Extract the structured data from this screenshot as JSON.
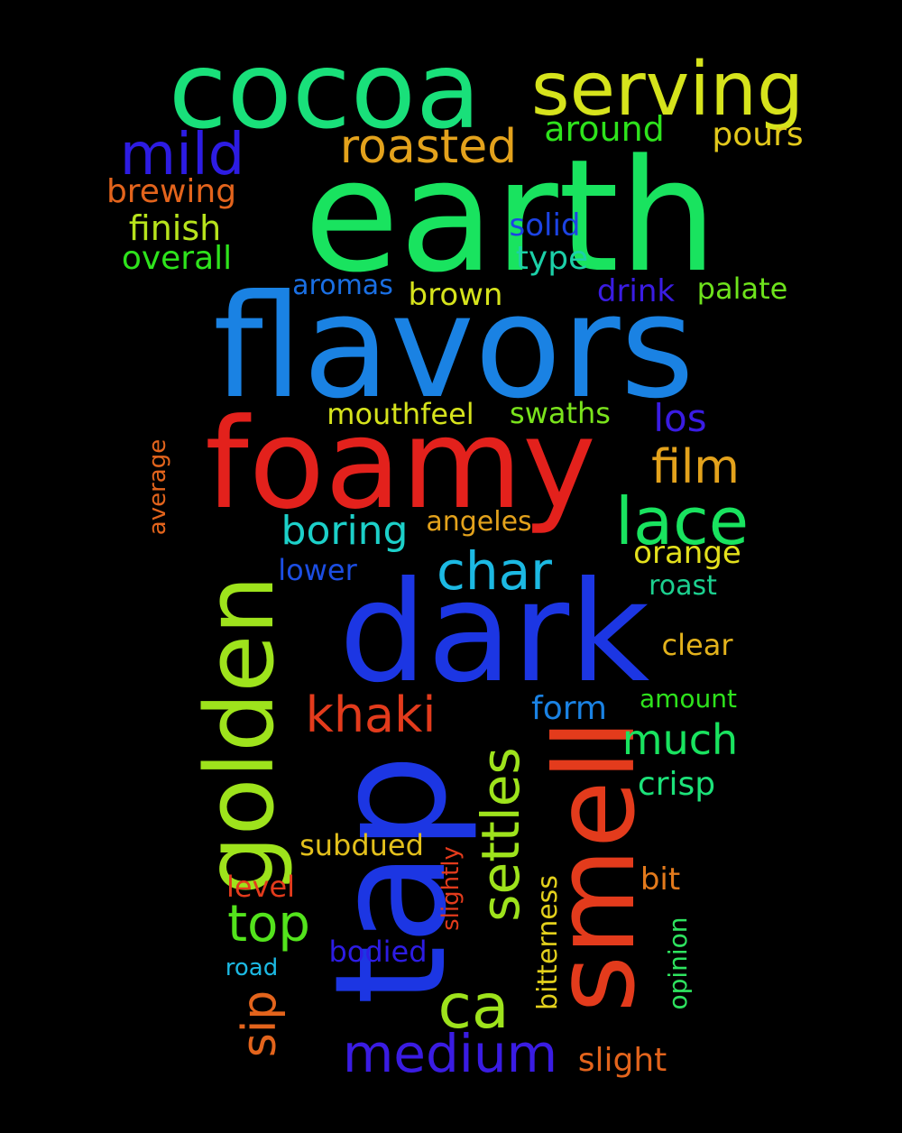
{
  "background": "#000000",
  "words": [
    {
      "text": "earth",
      "color": "#19e35f"
    },
    {
      "text": "flavors",
      "color": "#1a82e3"
    },
    {
      "text": "cocoa",
      "color": "#19e07a"
    },
    {
      "text": "foamy",
      "color": "#e3211c"
    },
    {
      "text": "dark",
      "color": "#1c36e3"
    },
    {
      "text": "tap",
      "color": "#1c36e3"
    },
    {
      "text": "smell",
      "color": "#e33b1c"
    },
    {
      "text": "golden",
      "color": "#9ee31c"
    },
    {
      "text": "serving",
      "color": "#d6e31c"
    },
    {
      "text": "mild",
      "color": "#2d1ce3"
    },
    {
      "text": "roasted",
      "color": "#e3a21c"
    },
    {
      "text": "around",
      "color": "#2ee31c"
    },
    {
      "text": "pours",
      "color": "#e3c91c"
    },
    {
      "text": "brewing",
      "color": "#e3641c"
    },
    {
      "text": "finish",
      "color": "#b7e31c"
    },
    {
      "text": "overall",
      "color": "#2ee31c"
    },
    {
      "text": "solid",
      "color": "#1c43e3"
    },
    {
      "text": "type",
      "color": "#1cd0a8"
    },
    {
      "text": "aromas",
      "color": "#1a6fe3"
    },
    {
      "text": "brown",
      "color": "#d6e31c"
    },
    {
      "text": "drink",
      "color": "#3a1ce3"
    },
    {
      "text": "palate",
      "color": "#6ee31c"
    },
    {
      "text": "mouthfeel",
      "color": "#d6e31c"
    },
    {
      "text": "swaths",
      "color": "#7ae31c"
    },
    {
      "text": "los",
      "color": "#3a1ce3"
    },
    {
      "text": "film",
      "color": "#e3a21c"
    },
    {
      "text": "lace",
      "color": "#19e35f"
    },
    {
      "text": "average",
      "color": "#e3641c"
    },
    {
      "text": "boring",
      "color": "#1cd0c9"
    },
    {
      "text": "angeles",
      "color": "#e3a21c"
    },
    {
      "text": "char",
      "color": "#1cb9e3"
    },
    {
      "text": "orange",
      "color": "#e3e01c"
    },
    {
      "text": "lower",
      "color": "#1c4ee3"
    },
    {
      "text": "roast",
      "color": "#1cd08f"
    },
    {
      "text": "clear",
      "color": "#e3b21c"
    },
    {
      "text": "khaki",
      "color": "#e33b1c"
    },
    {
      "text": "form",
      "color": "#1a82e3"
    },
    {
      "text": "amount",
      "color": "#2ee31c"
    },
    {
      "text": "settles",
      "color": "#9ee31c"
    },
    {
      "text": "much",
      "color": "#19e35f"
    },
    {
      "text": "crisp",
      "color": "#1ce37a"
    },
    {
      "text": "top",
      "color": "#53e31c"
    },
    {
      "text": "subdued",
      "color": "#e3c01c"
    },
    {
      "text": "slightly",
      "color": "#e33b1c"
    },
    {
      "text": "bitterness",
      "color": "#e3d01c"
    },
    {
      "text": "bit",
      "color": "#e37a1c"
    },
    {
      "text": "level",
      "color": "#e33b1c"
    },
    {
      "text": "ca",
      "color": "#9ee31c"
    },
    {
      "text": "bodied",
      "color": "#2d1ce3"
    },
    {
      "text": "opinion",
      "color": "#2ee35f"
    },
    {
      "text": "road",
      "color": "#1cb9e3"
    },
    {
      "text": "sip",
      "color": "#e3641c"
    },
    {
      "text": "medium",
      "color": "#3a1ce3"
    },
    {
      "text": "slight",
      "color": "#e3641c"
    }
  ]
}
